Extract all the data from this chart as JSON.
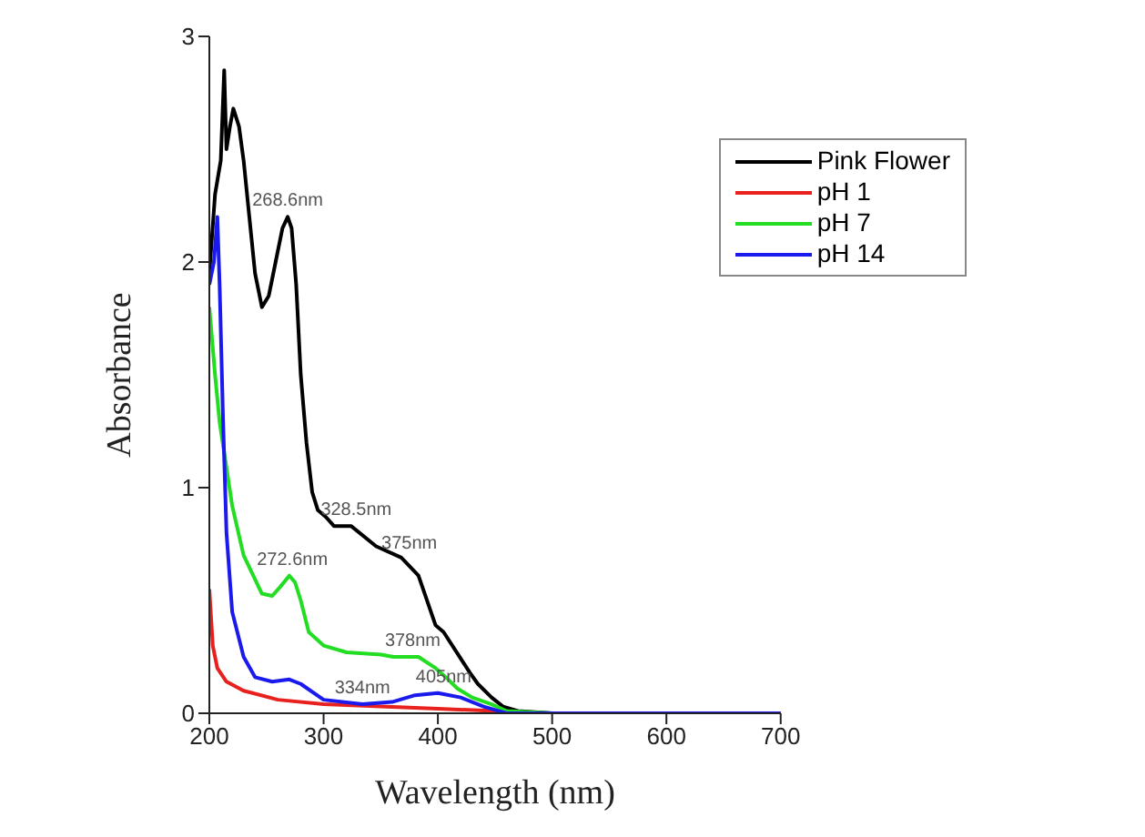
{
  "chart_data": {
    "type": "line",
    "xlabel": "Wavelength (nm)",
    "ylabel": "Absorbance",
    "xlim": [
      200,
      700
    ],
    "xticks": [
      200,
      300,
      400,
      500,
      600,
      700
    ],
    "ylim": [
      0,
      3
    ],
    "yticks": [
      0,
      1,
      2,
      3
    ],
    "legend": "top right",
    "series": [
      {
        "name": "Pink Flower",
        "color": "#000000",
        "x": [
          200,
          205,
          210,
          213,
          215,
          218,
          221,
          226,
          230,
          235,
          240,
          246,
          252,
          258,
          264,
          268.6,
          272,
          276,
          280,
          285,
          290,
          295,
          302,
          309,
          324,
          346,
          368,
          383,
          398,
          405,
          428,
          435,
          447,
          457,
          470,
          500,
          550,
          600,
          650,
          700
        ],
        "values": [
          1.95,
          2.3,
          2.45,
          2.85,
          2.5,
          2.6,
          2.68,
          2.6,
          2.45,
          2.2,
          1.95,
          1.8,
          1.85,
          2.0,
          2.15,
          2.2,
          2.15,
          1.9,
          1.5,
          1.2,
          0.98,
          0.9,
          0.87,
          0.83,
          0.83,
          0.74,
          0.69,
          0.61,
          0.39,
          0.36,
          0.18,
          0.13,
          0.07,
          0.03,
          0.01,
          0,
          0,
          0,
          0,
          0
        ]
      },
      {
        "name": "pH 1",
        "color": "#e8201e",
        "x": [
          200,
          203,
          207,
          215,
          230,
          260,
          300,
          350,
          400,
          450,
          480
        ],
        "values": [
          0.55,
          0.3,
          0.2,
          0.14,
          0.1,
          0.06,
          0.04,
          0.03,
          0.02,
          0.01,
          0
        ]
      },
      {
        "name": "pH 7",
        "color": "#22dd22",
        "x": [
          200,
          205,
          209,
          220,
          230,
          246,
          255,
          262,
          270,
          275,
          280,
          287,
          300,
          320,
          350,
          361,
          383,
          398,
          409,
          417,
          430,
          447,
          460,
          500
        ],
        "values": [
          1.8,
          1.5,
          1.29,
          0.92,
          0.7,
          0.53,
          0.52,
          0.56,
          0.61,
          0.58,
          0.5,
          0.36,
          0.3,
          0.27,
          0.26,
          0.25,
          0.25,
          0.2,
          0.15,
          0.11,
          0.07,
          0.04,
          0.01,
          0
        ]
      },
      {
        "name": "pH 14",
        "color": "#1a1aee",
        "x": [
          200,
          204,
          207,
          209,
          212,
          215,
          220,
          230,
          240,
          255,
          270,
          280,
          300,
          334,
          360,
          380,
          400,
          420,
          440,
          460,
          500,
          550,
          600,
          650,
          700
        ],
        "values": [
          1.9,
          2.0,
          2.2,
          1.9,
          1.3,
          0.8,
          0.45,
          0.25,
          0.16,
          0.14,
          0.15,
          0.13,
          0.06,
          0.04,
          0.05,
          0.08,
          0.09,
          0.07,
          0.03,
          0,
          0,
          0,
          0,
          0,
          0
        ]
      }
    ],
    "annotations": [
      {
        "text": "268.6nm",
        "x": 268.6,
        "y": 2.2
      },
      {
        "text": "328.5nm",
        "x": 328.5,
        "y": 0.83
      },
      {
        "text": "375nm",
        "x": 375,
        "y": 0.68
      },
      {
        "text": "272.6nm",
        "x": 272.6,
        "y": 0.61
      },
      {
        "text": "378nm",
        "x": 378,
        "y": 0.25
      },
      {
        "text": "334nm",
        "x": 334,
        "y": 0.04
      },
      {
        "text": "405nm",
        "x": 405,
        "y": 0.09
      }
    ]
  }
}
